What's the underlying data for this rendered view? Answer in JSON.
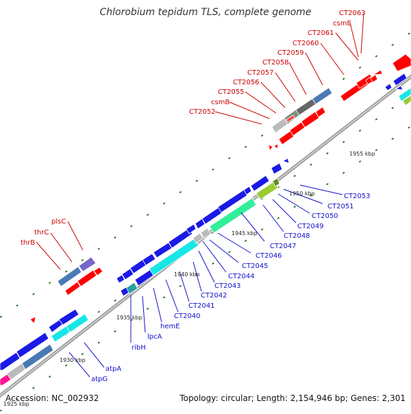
{
  "title": "Chlorobium tepidum TLS, complete genome",
  "footer": {
    "accession": "Accession: NC_002932",
    "summary": "Topology: circular; Length: 2,154,946 bp; Genes: 2,301"
  },
  "colors": {
    "backbone": "#888888",
    "label_red": "#cc0000",
    "label_blue": "#1010cc",
    "tick": "#2a7d2a",
    "gene_red": "#ff0000",
    "gene_blue": "#1a1ae6",
    "gene_cyan": "#18e6e6",
    "gene_steel": "#4a7ab4",
    "gene_gray": "#bbbbbb",
    "gene_dark": "#666666",
    "gene_green": "#99cc33",
    "gene_mint": "#33ee99",
    "gene_purple": "#7766cc",
    "gene_pink": "#ff1493",
    "gene_teal": "#2aa0a0"
  },
  "kbp_labels": [
    "1925 kbp",
    "1930 kbp",
    "1935 kbp",
    "1940 kbp",
    "1945 kbp",
    "1950 kbp",
    "1955 kbp"
  ],
  "gene_labels_top": [
    "thrB",
    "thrC",
    "plsC",
    "CT2052",
    "csmB",
    "CT2055",
    "CT2056",
    "CT2057",
    "CT2058",
    "CT2059",
    "CT2060",
    "CT2061",
    "csmE",
    "CT2063"
  ],
  "gene_labels_bottom": [
    "atpG",
    "atpA",
    "ribH",
    "lpcA",
    "hemE",
    "CT2040",
    "CT2041",
    "CT2042",
    "CT2043",
    "CT2044",
    "CT2045",
    "CT2046",
    "CT2047",
    "CT2048",
    "CT2049",
    "CT2050",
    "CT2051",
    "CT2053"
  ]
}
